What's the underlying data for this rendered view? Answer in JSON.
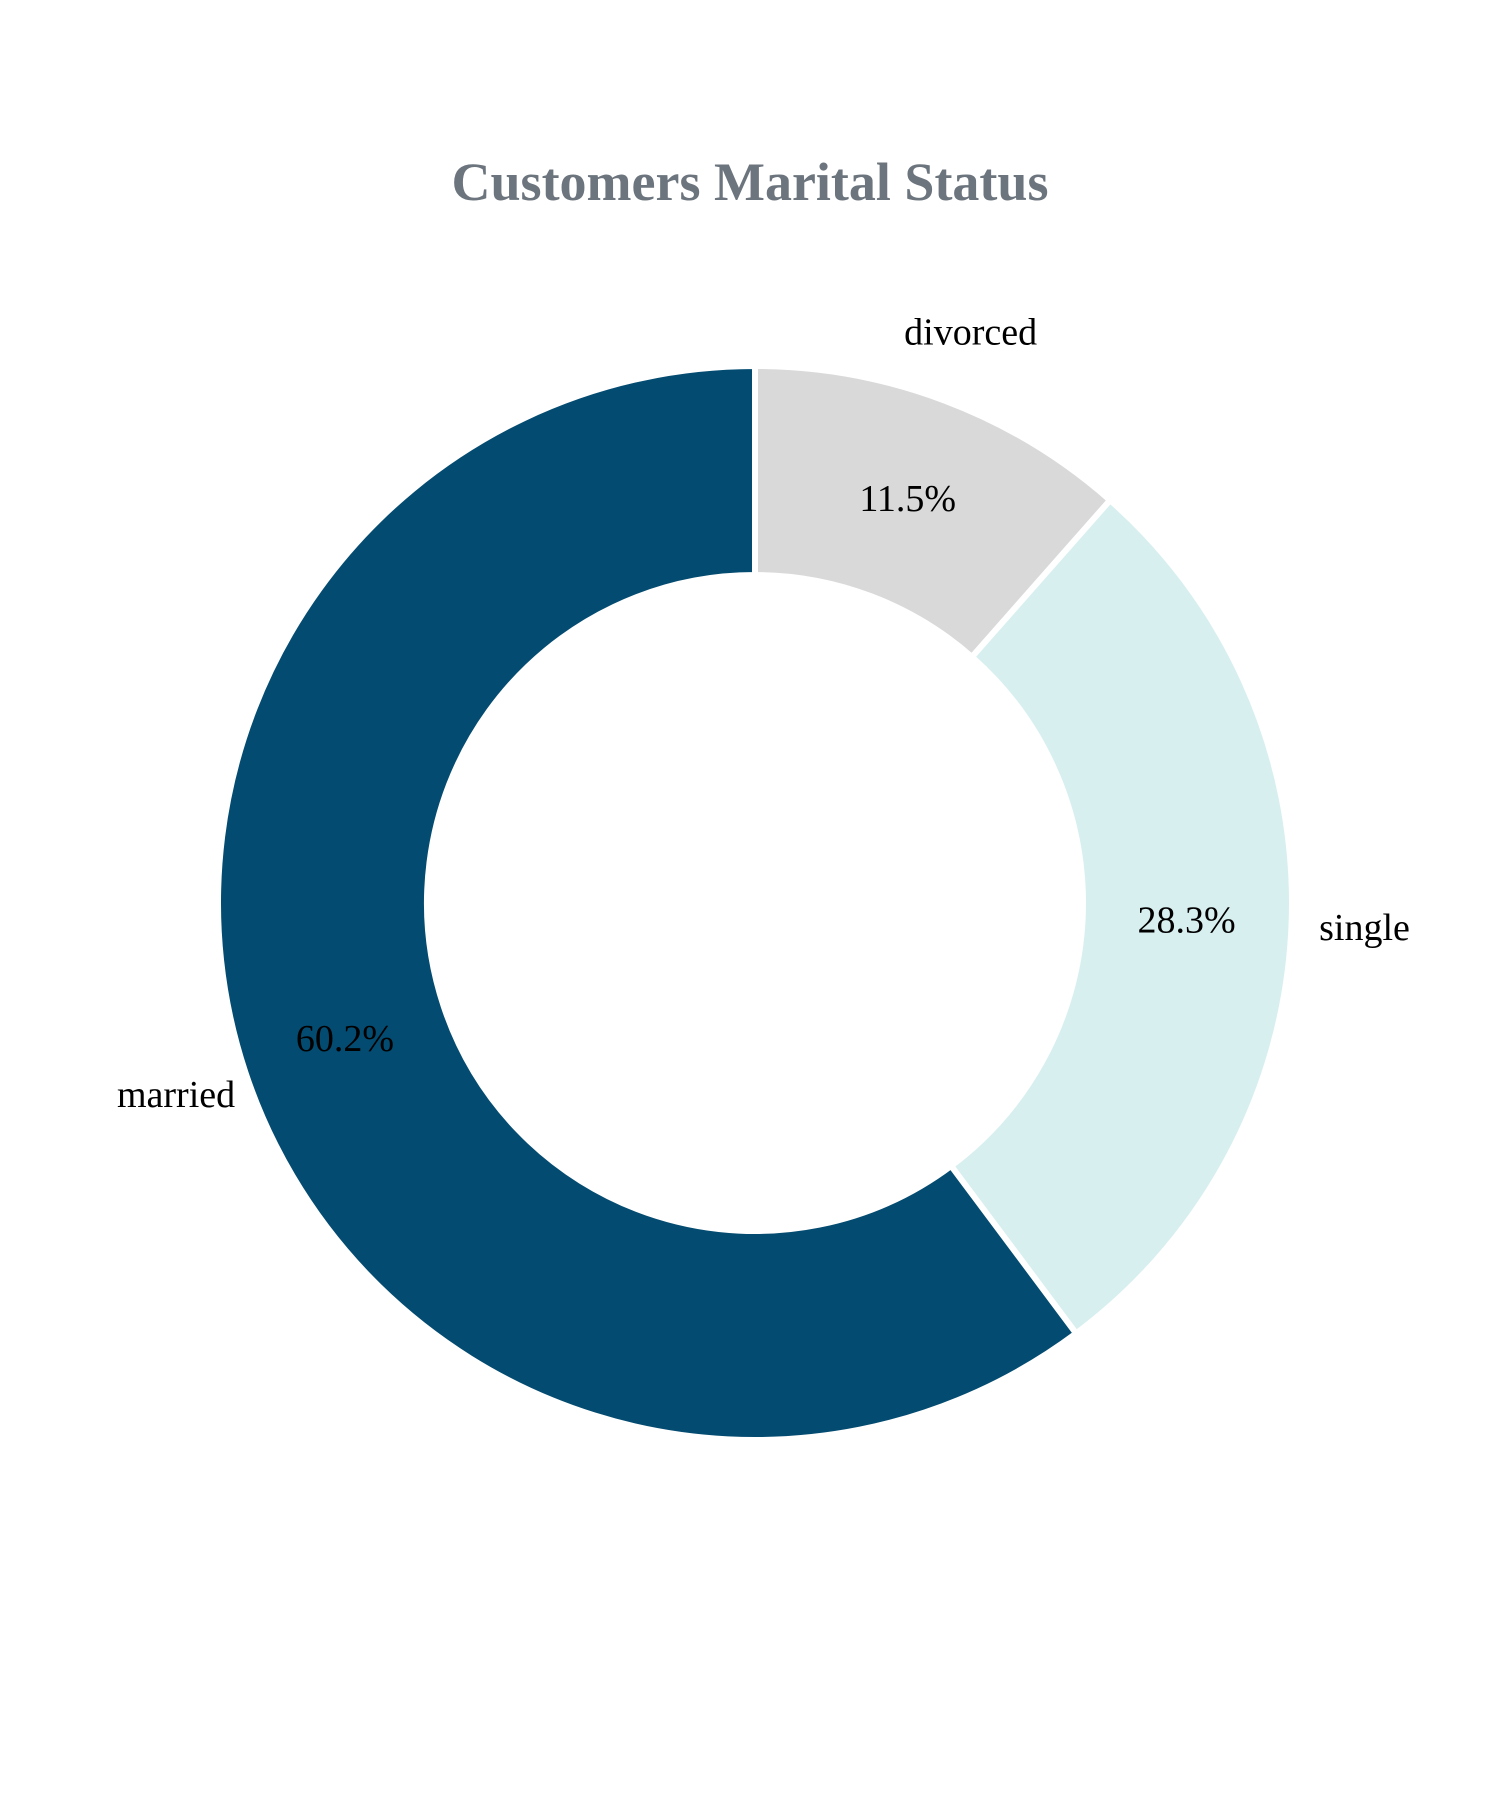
{
  "chart_data": {
    "type": "pie",
    "title": "Customers Marital Status",
    "donut": true,
    "legend": "none",
    "slices": [
      {
        "label": "divorced",
        "value": 11.5,
        "pct_label": "11.5%",
        "color": "#d9d9d9"
      },
      {
        "label": "single",
        "value": 28.3,
        "pct_label": "28.3%",
        "color": "#d8eff0"
      },
      {
        "label": "married",
        "value": 60.2,
        "pct_label": "60.2%",
        "color": "#034b70"
      }
    ]
  },
  "style": {
    "title_color": "#6c757d",
    "slice_border_color": "#ffffff",
    "background": "#ffffff"
  }
}
